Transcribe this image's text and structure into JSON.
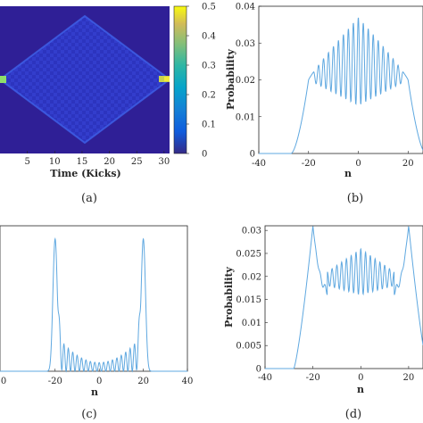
{
  "chart_data": [
    {
      "panel": "a",
      "type": "heatmap",
      "caption": "(a)",
      "xlabel": "Time (Kicks)",
      "xticks": [
        5,
        10,
        15,
        20,
        25,
        30
      ],
      "xlim": [
        0,
        31
      ],
      "colorbar": {
        "ticks": [
          0,
          0.1,
          0.2,
          0.3,
          0.4,
          0.5
        ],
        "range": [
          0,
          0.5
        ],
        "colormap": "parula"
      },
      "description_values": {
        "initial_peak_time": 0,
        "spread_max_time": 15,
        "refocus_time": 30,
        "peak_value": 0.5
      }
    },
    {
      "panel": "b",
      "type": "line",
      "caption": "(b)",
      "xlabel": "n",
      "ylabel": "Probability",
      "xticks": [
        -40,
        -20,
        0,
        20
      ],
      "yticks": [
        0,
        0.01,
        0.02,
        0.03,
        0.04
      ],
      "xlim": [
        -40,
        26
      ],
      "ylim": [
        0,
        0.04
      ],
      "color": "#5fa8e0",
      "series": [
        {
          "n": [
            -40,
            -30,
            -26,
            -24,
            -22,
            -20,
            -18,
            -16,
            -14,
            -12,
            -10,
            -8,
            -6,
            -4,
            -2,
            0,
            2,
            4,
            6,
            8,
            10,
            12,
            14,
            16,
            18,
            20,
            22,
            24,
            26
          ],
          "values": [
            0,
            0,
            0.001,
            0.005,
            0.017,
            0.02,
            0.0235,
            0.024,
            0.026,
            0.028,
            0.031,
            0.032,
            0.034,
            0.035,
            0.036,
            0.037,
            0.036,
            0.035,
            0.034,
            0.032,
            0.031,
            0.028,
            0.026,
            0.024,
            0.0235,
            0.02,
            0.017,
            0.005,
            0.001
          ],
          "minima": [
            0.02,
            0.019,
            0.017,
            0.016,
            0.014,
            0.013,
            0.013,
            0.013,
            0.014,
            0.016,
            0.017,
            0.019,
            0.02
          ]
        }
      ]
    },
    {
      "panel": "c",
      "type": "line",
      "caption": "(c)",
      "xlabel": "n",
      "xticks": [
        -20,
        0,
        20,
        40
      ],
      "partial_left_tick": "0",
      "xlim": [
        -45,
        40
      ],
      "ylim": [
        0,
        0.05
      ],
      "color": "#5fa8e0",
      "series": [
        {
          "peaks": [
            [
              -20,
              0.0455
            ],
            [
              20,
              0.0455
            ]
          ],
          "center_level": 0.004
        }
      ]
    },
    {
      "panel": "d",
      "type": "line",
      "caption": "(d)",
      "xlabel": "n",
      "ylabel": "Probability",
      "xticks": [
        -40,
        -20,
        0,
        20
      ],
      "yticks": [
        0,
        0.005,
        0.01,
        0.015,
        0.02,
        0.025,
        0.03
      ],
      "xlim": [
        -40,
        26
      ],
      "ylim": [
        0,
        0.031
      ],
      "color": "#5fa8e0",
      "series": [
        {
          "peaks": [
            [
              -20,
              0.031
            ],
            [
              20,
              0.031
            ]
          ],
          "center_max": 0.026,
          "center_min": 0.016
        }
      ]
    }
  ]
}
